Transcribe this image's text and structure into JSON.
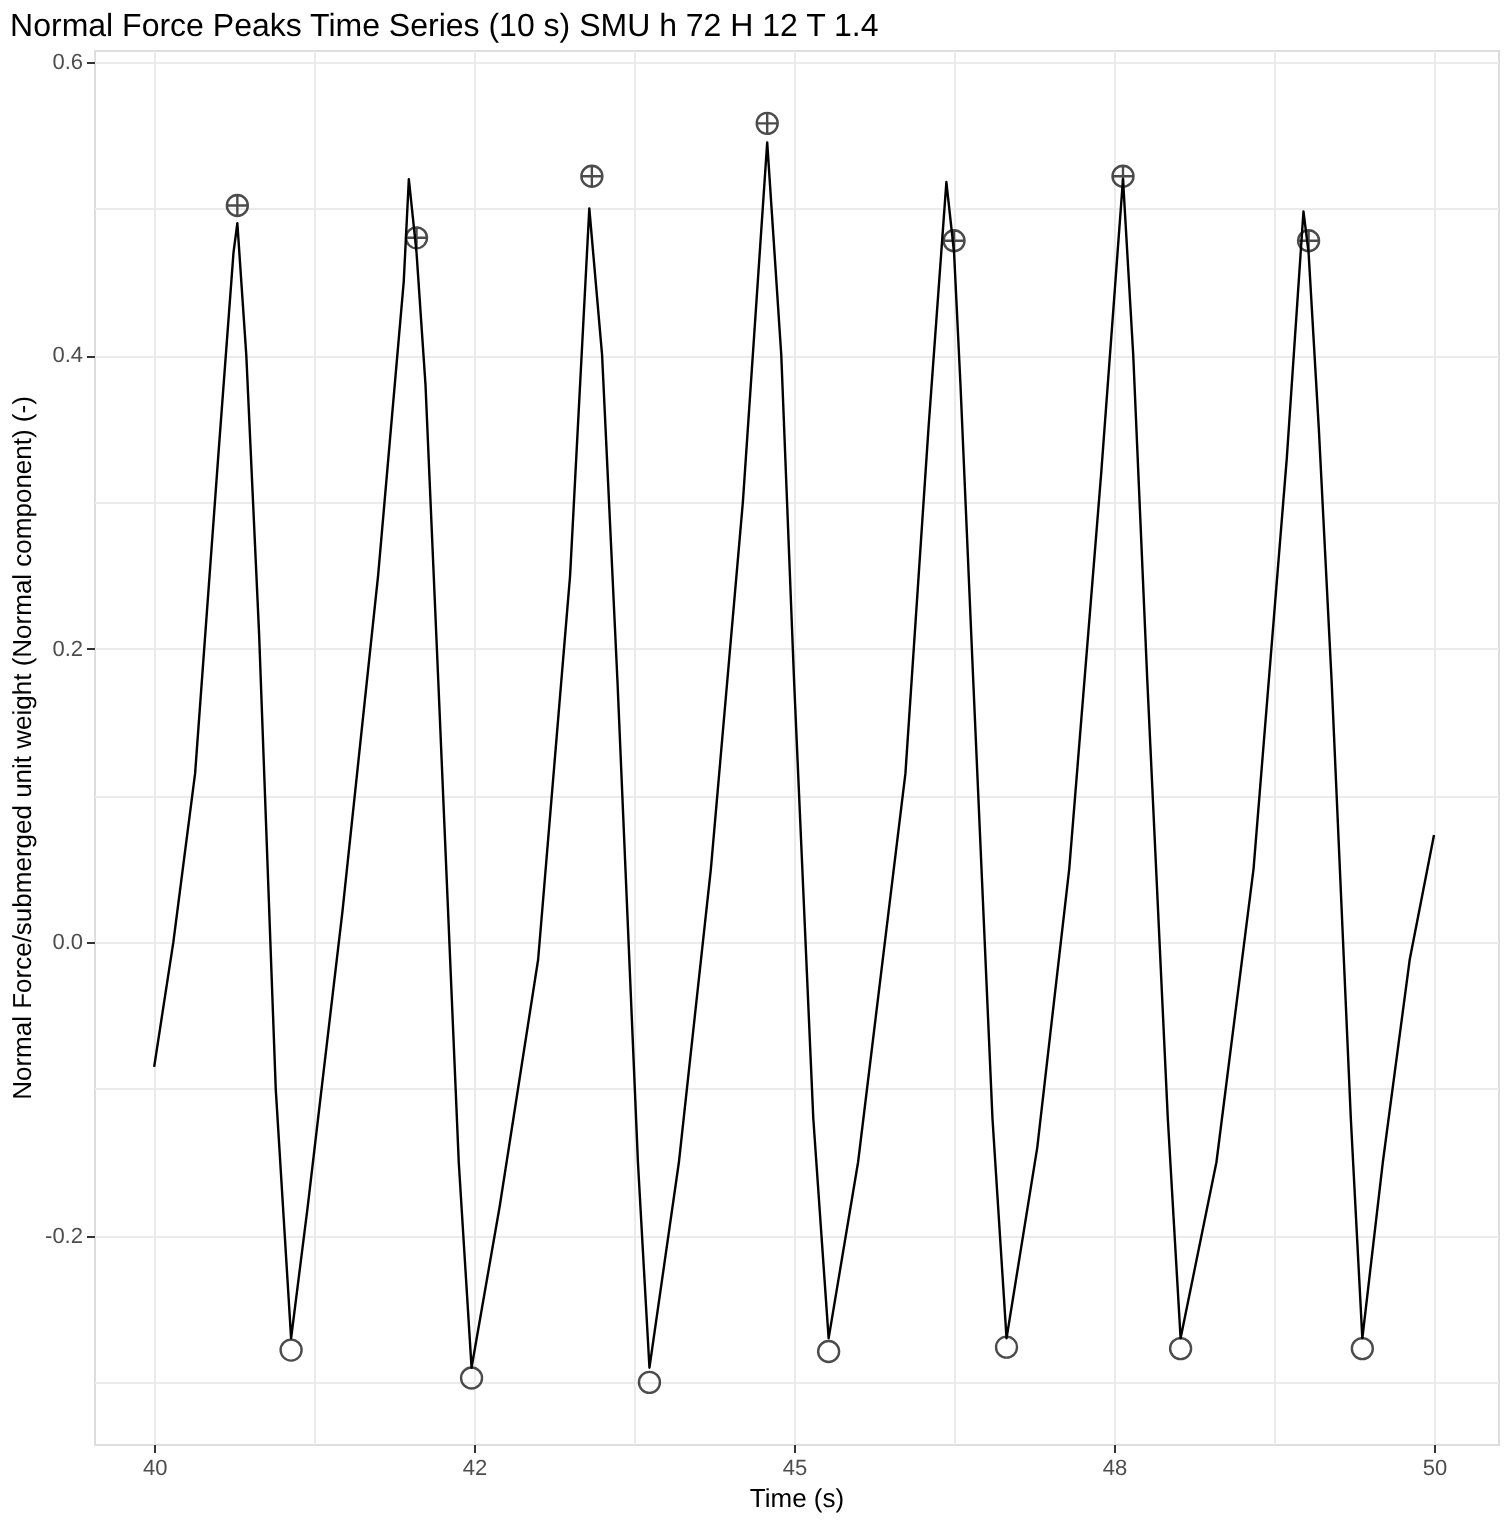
{
  "chart_data": {
    "type": "line",
    "title": "Normal Force Peaks Time Series (10 s) SMU h 72 H 12 T 1.4",
    "xlabel": "Time (s)",
    "ylabel": "Normal Force/submerged unit weight (Normal component) (-)",
    "xlim": [
      39.53,
      50.5
    ],
    "ylim": [
      -0.342,
      0.608
    ],
    "xticks": [
      40,
      {
        "value": 41.25,
        "label": null
      },
      {
        "value": 42.5,
        "label": "42"
      },
      {
        "value": 43.75,
        "label": null
      },
      45,
      {
        "value": 46.25,
        "label": null
      },
      {
        "value": 47.5,
        "label": "48"
      },
      {
        "value": 48.75,
        "label": null
      },
      50
    ],
    "yticks": [
      {
        "value": -0.3,
        "label": null
      },
      -0.2,
      {
        "value": -0.1,
        "label": null
      },
      {
        "value": 0,
        "label": "0.0"
      },
      {
        "value": 0.1,
        "label": null
      },
      0.2,
      {
        "value": 0.3,
        "label": null
      },
      0.4,
      {
        "value": 0.5,
        "label": null
      },
      0.6
    ],
    "grid": true,
    "series": [
      {
        "type": "line",
        "color": "#000000",
        "marker": "none",
        "x": [
          40.0,
          40.15,
          40.32,
          40.5,
          40.62,
          40.65,
          40.72,
          40.82,
          40.95,
          41.07,
          41.2,
          41.47,
          41.75,
          41.95,
          41.99,
          42.05,
          42.12,
          42.22,
          42.38,
          42.48,
          42.7,
          43.0,
          43.25,
          43.4,
          43.5,
          43.62,
          43.78,
          43.87,
          44.1,
          44.35,
          44.6,
          44.79,
          44.9,
          45.0,
          45.15,
          45.27,
          45.5,
          45.87,
          46.05,
          46.19,
          46.25,
          46.3,
          46.4,
          46.55,
          46.66,
          46.9,
          47.15,
          47.4,
          47.57,
          47.65,
          47.76,
          47.92,
          48.02,
          48.3,
          48.59,
          48.85,
          48.98,
          49.02,
          49.1,
          49.2,
          49.35,
          49.44,
          49.6,
          49.81,
          50.0
        ],
        "values": [
          -0.085,
          0.0,
          0.115,
          0.33,
          0.47,
          0.49,
          0.4,
          0.21,
          -0.1,
          -0.27,
          -0.18,
          0.02,
          0.25,
          0.45,
          0.52,
          0.47,
          0.38,
          0.178,
          -0.15,
          -0.29,
          -0.18,
          -0.012,
          0.25,
          0.5,
          0.4,
          0.178,
          -0.15,
          -0.29,
          -0.15,
          0.05,
          0.3,
          0.545,
          0.4,
          0.178,
          -0.12,
          -0.27,
          -0.15,
          0.115,
          0.35,
          0.518,
          0.47,
          0.38,
          0.178,
          -0.12,
          -0.27,
          -0.14,
          0.05,
          0.32,
          0.52,
          0.4,
          0.178,
          -0.12,
          -0.27,
          -0.15,
          0.05,
          0.33,
          0.498,
          0.47,
          0.35,
          0.178,
          -0.12,
          -0.27,
          -0.15,
          -0.012,
          0.073
        ]
      },
      {
        "type": "scatter",
        "color": "#000000",
        "marker": "cross",
        "x": [
          40.65,
          42.05,
          43.42,
          44.79,
          46.25,
          47.57,
          49.02
        ],
        "values": [
          0.502,
          0.48,
          0.522,
          0.558,
          0.478,
          0.522,
          0.478
        ]
      },
      {
        "type": "scatter",
        "color": "#000000",
        "marker": "circle",
        "x": [
          41.07,
          42.48,
          43.87,
          45.27,
          46.66,
          48.02,
          49.44
        ],
        "values": [
          -0.278,
          -0.297,
          -0.3,
          -0.279,
          -0.276,
          -0.277,
          -0.277
        ]
      }
    ]
  }
}
